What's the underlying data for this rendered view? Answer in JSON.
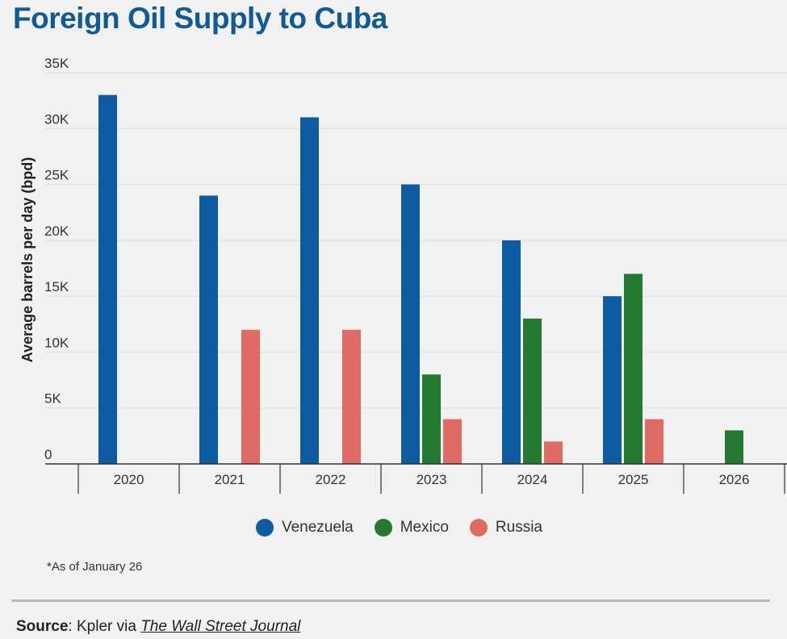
{
  "title": "Foreign Oil Supply to Cuba",
  "chart_data": {
    "type": "bar",
    "title": "Foreign Oil Supply to Cuba",
    "xlabel": "",
    "ylabel": "Average barrels per day (bpd)",
    "ylim": [
      0,
      35000
    ],
    "yticks": [
      0,
      5000,
      10000,
      15000,
      20000,
      25000,
      30000,
      35000
    ],
    "ytick_labels": [
      "0",
      "5K",
      "10K",
      "15K",
      "20K",
      "25K",
      "30K",
      "35K"
    ],
    "categories": [
      "2020",
      "2021",
      "2022",
      "2023",
      "2024",
      "2025",
      "2026"
    ],
    "grid": true,
    "legend_position": "bottom-center",
    "series": [
      {
        "name": "Venezuela",
        "color": "#0d5ba0",
        "values": [
          33000,
          24000,
          31000,
          25000,
          20000,
          15000,
          0
        ]
      },
      {
        "name": "Mexico",
        "color": "#23792f",
        "values": [
          0,
          0,
          0,
          8000,
          13000,
          17000,
          3000
        ]
      },
      {
        "name": "Russia",
        "color": "#de6b64",
        "values": [
          0,
          12000,
          12000,
          4000,
          2000,
          4000,
          0
        ]
      }
    ]
  },
  "footnote": "*As of  January 26",
  "source": {
    "label": "Source",
    "text": ": Kpler via ",
    "publication": "The Wall Street Journal"
  }
}
